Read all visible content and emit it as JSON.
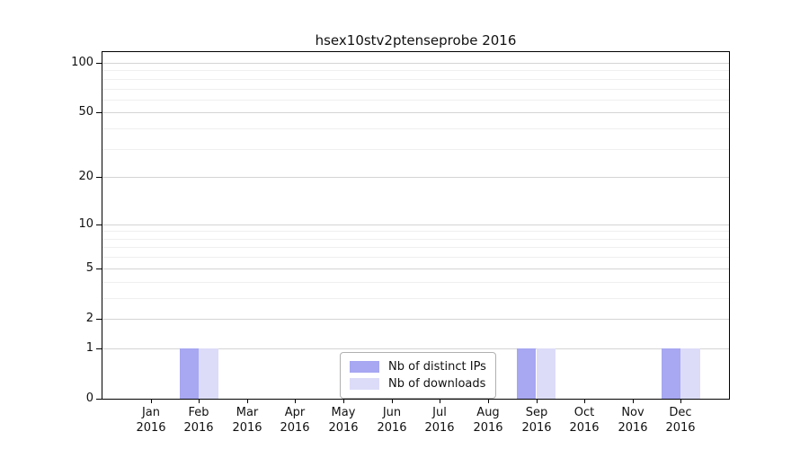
{
  "chart_data": {
    "type": "bar",
    "title": "hsex10stv2ptenseprobe 2016",
    "categories": [
      "Jan",
      "Feb",
      "Mar",
      "Apr",
      "May",
      "Jun",
      "Jul",
      "Aug",
      "Sep",
      "Oct",
      "Nov",
      "Dec"
    ],
    "x_tick_year": "2016",
    "series": [
      {
        "name": "Nb of distinct IPs",
        "color": "#a7a7f2",
        "values": [
          0,
          1,
          0,
          0,
          0,
          0,
          0,
          0,
          1,
          0,
          0,
          1
        ]
      },
      {
        "name": "Nb of downloads",
        "color": "#dcdcf8",
        "values": [
          0,
          1,
          0,
          0,
          0,
          0,
          0,
          0,
          1,
          0,
          0,
          1
        ]
      }
    ],
    "y_axis": {
      "scale": "log1p",
      "ticks": [
        0,
        1,
        2,
        5,
        10,
        20,
        50,
        100
      ],
      "minor_ticks": [
        3,
        4,
        6,
        7,
        8,
        9,
        30,
        40,
        60,
        70,
        80,
        90
      ],
      "max": 116
    },
    "xlabel": "",
    "ylabel": "",
    "grid": "horizontal-only",
    "legend_position": "bottom-center"
  }
}
